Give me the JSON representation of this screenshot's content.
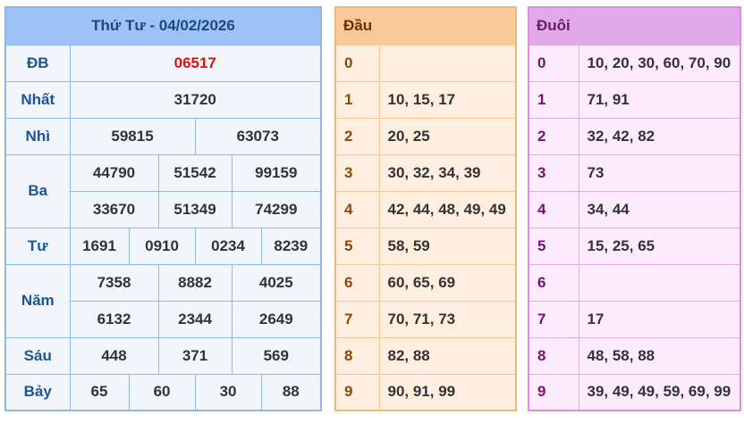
{
  "results": {
    "title": "Thứ Tư - 04/02/2026",
    "rows": [
      {
        "label": "ĐB",
        "values": [
          "06517"
        ]
      },
      {
        "label": "Nhất",
        "values": [
          "31720"
        ]
      },
      {
        "label": "Nhì",
        "values": [
          "59815",
          "63073"
        ]
      },
      {
        "label": "Ba",
        "values": [
          "44790",
          "51542",
          "99159",
          "33670",
          "51349",
          "74299"
        ]
      },
      {
        "label": "Tư",
        "values": [
          "1691",
          "0910",
          "0234",
          "8239"
        ]
      },
      {
        "label": "Năm",
        "values": [
          "7358",
          "8882",
          "4025",
          "6132",
          "2344",
          "2649"
        ]
      },
      {
        "label": "Sáu",
        "values": [
          "448",
          "371",
          "569"
        ]
      },
      {
        "label": "Bảy",
        "values": [
          "65",
          "60",
          "30",
          "88"
        ]
      }
    ]
  },
  "dau": {
    "header": "Đầu",
    "rows": [
      {
        "k": "0",
        "v": ""
      },
      {
        "k": "1",
        "v": "10, 15, 17"
      },
      {
        "k": "2",
        "v": "20, 25"
      },
      {
        "k": "3",
        "v": "30, 32, 34, 39"
      },
      {
        "k": "4",
        "v": "42, 44, 48, 49, 49"
      },
      {
        "k": "5",
        "v": "58, 59"
      },
      {
        "k": "6",
        "v": "60, 65, 69"
      },
      {
        "k": "7",
        "v": "70, 71, 73"
      },
      {
        "k": "8",
        "v": "82, 88"
      },
      {
        "k": "9",
        "v": "90, 91, 99"
      }
    ]
  },
  "duoi": {
    "header": "Đuôi",
    "rows": [
      {
        "k": "0",
        "v": "10, 20, 30, 60, 70, 90"
      },
      {
        "k": "1",
        "v": "71, 91"
      },
      {
        "k": "2",
        "v": "32, 42, 82"
      },
      {
        "k": "3",
        "v": "73"
      },
      {
        "k": "4",
        "v": "34, 44"
      },
      {
        "k": "5",
        "v": "15, 25, 65"
      },
      {
        "k": "6",
        "v": ""
      },
      {
        "k": "7",
        "v": "17"
      },
      {
        "k": "8",
        "v": "48, 58, 88"
      },
      {
        "k": "9",
        "v": "39, 49, 49, 59, 69, 99"
      }
    ]
  },
  "colors": {
    "special_prize": "#e01010",
    "results_header": "#9dc3f6",
    "dau_header": "#f9c99b",
    "duoi_header": "#e2a9e8"
  }
}
